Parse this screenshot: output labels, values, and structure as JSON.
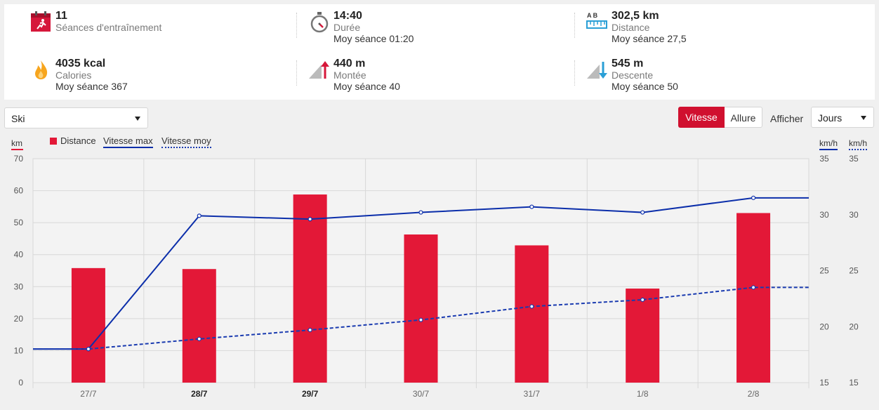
{
  "summary": {
    "sessions": {
      "value": "11",
      "label": "Séances d'entraînement",
      "sub": ""
    },
    "duration": {
      "value": "14:40",
      "label": "Durée",
      "sub": "Moy séance 01:20"
    },
    "distance": {
      "value": "302,5 km",
      "label": "Distance",
      "sub": "Moy séance 27,5",
      "icon_letters": "A  B"
    },
    "calories": {
      "value": "4035 kcal",
      "label": "Calories",
      "sub": "Moy séance 367"
    },
    "ascent": {
      "value": "440 m",
      "label": "Montée",
      "sub": "Moy séance 40"
    },
    "descent": {
      "value": "545 m",
      "label": "Descente",
      "sub": "Moy séance 50"
    }
  },
  "controls": {
    "sport_select": "Ski",
    "speed_toggle": "Vitesse",
    "pace_toggle": "Allure",
    "show_label": "Afficher",
    "period_select": "Jours"
  },
  "legend": {
    "distance": "Distance",
    "vmax": "Vitesse max",
    "vavg": "Vitesse moy",
    "left_unit": "km",
    "right_unit_1": "km/h",
    "right_unit_2": "km/h"
  },
  "colors": {
    "bar": "#e31837",
    "vmax_line": "#0b2eaa",
    "vavg_line": "#1a3bb0",
    "active_toggle": "#d0102f"
  },
  "chart_data": {
    "type": "bar",
    "categories": [
      "27/7",
      "28/7",
      "29/7",
      "30/7",
      "31/7",
      "1/8",
      "2/8"
    ],
    "bold_categories": [
      "28/7",
      "29/7"
    ],
    "ylim_left": [
      0,
      70
    ],
    "yticks_left": [
      0,
      10,
      20,
      30,
      40,
      50,
      60,
      70
    ],
    "ylim_right": [
      15,
      35
    ],
    "yticks_right": [
      15,
      20,
      25,
      30,
      35
    ],
    "series": [
      {
        "name": "Distance",
        "type": "bar",
        "axis": "left",
        "values": [
          35.8,
          35.5,
          58.8,
          46.3,
          42.9,
          29.4,
          53.0
        ]
      },
      {
        "name": "Vitesse max",
        "type": "line",
        "axis": "right",
        "start": 18.0,
        "values": [
          18.0,
          29.9,
          29.6,
          30.2,
          30.7,
          30.2,
          31.5
        ],
        "end": 31.5
      },
      {
        "name": "Vitesse moy",
        "type": "line",
        "axis": "right",
        "style": "dashed",
        "start": 18.0,
        "values": [
          18.0,
          18.9,
          19.7,
          20.6,
          21.8,
          22.4,
          23.5
        ],
        "end": 23.5
      }
    ],
    "grid": true
  }
}
